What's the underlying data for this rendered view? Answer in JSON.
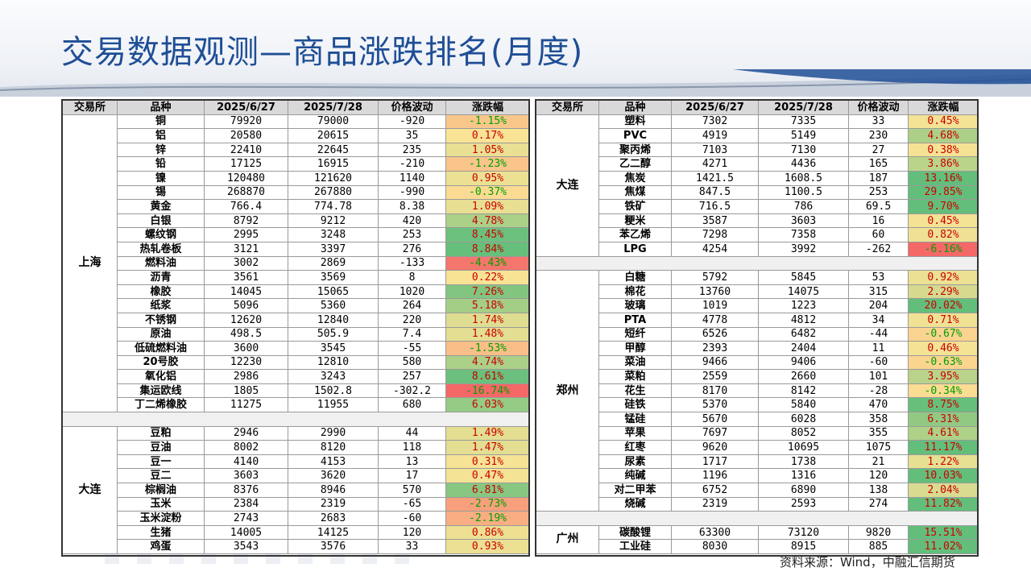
{
  "title": "交易数据观测—商品涨跌排名(月度)",
  "source": "资料来源：Wind，中融汇信期货",
  "headers": [
    "交易所",
    "品种",
    "2025/6/27",
    "2025/7/28",
    "价格波动",
    "涨跌幅"
  ],
  "colors": {
    "title": "#1f4e96",
    "up": "#cc0000",
    "down": "#00a000",
    "header_bg": "#d9d9d9"
  },
  "left_groups": [
    {
      "exchange": "上海",
      "rows": [
        {
          "name": "铜",
          "p1": "79920",
          "p2": "79000",
          "chg": "-920",
          "pct": "-1.15%"
        },
        {
          "name": "铝",
          "p1": "20580",
          "p2": "20615",
          "chg": "35",
          "pct": "0.17%"
        },
        {
          "name": "锌",
          "p1": "22410",
          "p2": "22645",
          "chg": "235",
          "pct": "1.05%"
        },
        {
          "name": "铅",
          "p1": "17125",
          "p2": "16915",
          "chg": "-210",
          "pct": "-1.23%"
        },
        {
          "name": "镍",
          "p1": "120480",
          "p2": "121620",
          "chg": "1140",
          "pct": "0.95%"
        },
        {
          "name": "锡",
          "p1": "268870",
          "p2": "267880",
          "chg": "-990",
          "pct": "-0.37%"
        },
        {
          "name": "黄金",
          "p1": "766.4",
          "p2": "774.78",
          "chg": "8.38",
          "pct": "1.09%"
        },
        {
          "name": "白银",
          "p1": "8792",
          "p2": "9212",
          "chg": "420",
          "pct": "4.78%"
        },
        {
          "name": "螺纹钢",
          "p1": "2995",
          "p2": "3248",
          "chg": "253",
          "pct": "8.45%"
        },
        {
          "name": "热轧卷板",
          "p1": "3121",
          "p2": "3397",
          "chg": "276",
          "pct": "8.84%"
        },
        {
          "name": "燃料油",
          "p1": "3002",
          "p2": "2869",
          "chg": "-133",
          "pct": "-4.43%"
        },
        {
          "name": "沥青",
          "p1": "3561",
          "p2": "3569",
          "chg": "8",
          "pct": "0.22%"
        },
        {
          "name": "橡胶",
          "p1": "14045",
          "p2": "15065",
          "chg": "1020",
          "pct": "7.26%"
        },
        {
          "name": "纸浆",
          "p1": "5096",
          "p2": "5360",
          "chg": "264",
          "pct": "5.18%"
        },
        {
          "name": "不锈钢",
          "p1": "12620",
          "p2": "12840",
          "chg": "220",
          "pct": "1.74%"
        },
        {
          "name": "原油",
          "p1": "498.5",
          "p2": "505.9",
          "chg": "7.4",
          "pct": "1.48%"
        },
        {
          "name": "低硫燃料油",
          "p1": "3600",
          "p2": "3545",
          "chg": "-55",
          "pct": "-1.53%"
        },
        {
          "name": "20号胶",
          "p1": "12230",
          "p2": "12810",
          "chg": "580",
          "pct": "4.74%"
        },
        {
          "name": "氧化铝",
          "p1": "2986",
          "p2": "3243",
          "chg": "257",
          "pct": "8.61%"
        },
        {
          "name": "集运欧线",
          "p1": "1805",
          "p2": "1502.8",
          "chg": "-302.2",
          "pct": "-16.74%"
        },
        {
          "name": "丁二烯橡胶",
          "p1": "11275",
          "p2": "11955",
          "chg": "680",
          "pct": "6.03%"
        }
      ]
    },
    {
      "exchange": "大连",
      "rows": [
        {
          "name": "豆粕",
          "p1": "2946",
          "p2": "2990",
          "chg": "44",
          "pct": "1.49%"
        },
        {
          "name": "豆油",
          "p1": "8002",
          "p2": "8120",
          "chg": "118",
          "pct": "1.47%"
        },
        {
          "name": "豆一",
          "p1": "4140",
          "p2": "4153",
          "chg": "13",
          "pct": "0.31%"
        },
        {
          "name": "豆二",
          "p1": "3603",
          "p2": "3620",
          "chg": "17",
          "pct": "0.47%"
        },
        {
          "name": "棕榈油",
          "p1": "8376",
          "p2": "8946",
          "chg": "570",
          "pct": "6.81%"
        },
        {
          "name": "玉米",
          "p1": "2384",
          "p2": "2319",
          "chg": "-65",
          "pct": "-2.73%"
        },
        {
          "name": "玉米淀粉",
          "p1": "2743",
          "p2": "2683",
          "chg": "-60",
          "pct": "-2.19%"
        },
        {
          "name": "生猪",
          "p1": "14005",
          "p2": "14125",
          "chg": "120",
          "pct": "0.86%"
        },
        {
          "name": "鸡蛋",
          "p1": "3543",
          "p2": "3576",
          "chg": "33",
          "pct": "0.93%"
        }
      ]
    }
  ],
  "right_groups": [
    {
      "exchange": "大连",
      "rows": [
        {
          "name": "塑料",
          "p1": "7302",
          "p2": "7335",
          "chg": "33",
          "pct": "0.45%"
        },
        {
          "name": "PVC",
          "p1": "4919",
          "p2": "5149",
          "chg": "230",
          "pct": "4.68%"
        },
        {
          "name": "聚丙烯",
          "p1": "7103",
          "p2": "7130",
          "chg": "27",
          "pct": "0.38%"
        },
        {
          "name": "乙二醇",
          "p1": "4271",
          "p2": "4436",
          "chg": "165",
          "pct": "3.86%"
        },
        {
          "name": "焦炭",
          "p1": "1421.5",
          "p2": "1608.5",
          "chg": "187",
          "pct": "13.16%"
        },
        {
          "name": "焦煤",
          "p1": "847.5",
          "p2": "1100.5",
          "chg": "253",
          "pct": "29.85%"
        },
        {
          "name": "铁矿",
          "p1": "716.5",
          "p2": "786",
          "chg": "69.5",
          "pct": "9.70%"
        },
        {
          "name": "粳米",
          "p1": "3587",
          "p2": "3603",
          "chg": "16",
          "pct": "0.45%"
        },
        {
          "name": "苯乙烯",
          "p1": "7298",
          "p2": "7358",
          "chg": "60",
          "pct": "0.82%"
        },
        {
          "name": "LPG",
          "p1": "4254",
          "p2": "3992",
          "chg": "-262",
          "pct": "-6.16%"
        }
      ]
    },
    {
      "exchange": "郑州",
      "rows": [
        {
          "name": "白糖",
          "p1": "5792",
          "p2": "5845",
          "chg": "53",
          "pct": "0.92%"
        },
        {
          "name": "棉花",
          "p1": "13760",
          "p2": "14075",
          "chg": "315",
          "pct": "2.29%"
        },
        {
          "name": "玻璃",
          "p1": "1019",
          "p2": "1223",
          "chg": "204",
          "pct": "20.02%"
        },
        {
          "name": "PTA",
          "p1": "4778",
          "p2": "4812",
          "chg": "34",
          "pct": "0.71%"
        },
        {
          "name": "短纤",
          "p1": "6526",
          "p2": "6482",
          "chg": "-44",
          "pct": "-0.67%"
        },
        {
          "name": "甲醇",
          "p1": "2393",
          "p2": "2404",
          "chg": "11",
          "pct": "0.46%"
        },
        {
          "name": "菜油",
          "p1": "9466",
          "p2": "9406",
          "chg": "-60",
          "pct": "-0.63%"
        },
        {
          "name": "菜粕",
          "p1": "2559",
          "p2": "2660",
          "chg": "101",
          "pct": "3.95%"
        },
        {
          "name": "花生",
          "p1": "8170",
          "p2": "8142",
          "chg": "-28",
          "pct": "-0.34%"
        },
        {
          "name": "硅铁",
          "p1": "5370",
          "p2": "5840",
          "chg": "470",
          "pct": "8.75%"
        },
        {
          "name": "锰硅",
          "p1": "5670",
          "p2": "6028",
          "chg": "358",
          "pct": "6.31%"
        },
        {
          "name": "苹果",
          "p1": "7697",
          "p2": "8052",
          "chg": "355",
          "pct": "4.61%"
        },
        {
          "name": "红枣",
          "p1": "9620",
          "p2": "10695",
          "chg": "1075",
          "pct": "11.17%"
        },
        {
          "name": "尿素",
          "p1": "1717",
          "p2": "1738",
          "chg": "21",
          "pct": "1.22%"
        },
        {
          "name": "纯碱",
          "p1": "1196",
          "p2": "1316",
          "chg": "120",
          "pct": "10.03%"
        },
        {
          "name": "对二甲苯",
          "p1": "6752",
          "p2": "6890",
          "chg": "138",
          "pct": "2.04%"
        },
        {
          "name": "烧碱",
          "p1": "2319",
          "p2": "2593",
          "chg": "274",
          "pct": "11.82%"
        }
      ]
    },
    {
      "exchange": "广州",
      "rows": [
        {
          "name": "碳酸锂",
          "p1": "63300",
          "p2": "73120",
          "chg": "9820",
          "pct": "15.51%"
        },
        {
          "name": "工业硅",
          "p1": "8030",
          "p2": "8915",
          "chg": "885",
          "pct": "11.02%"
        }
      ]
    }
  ]
}
